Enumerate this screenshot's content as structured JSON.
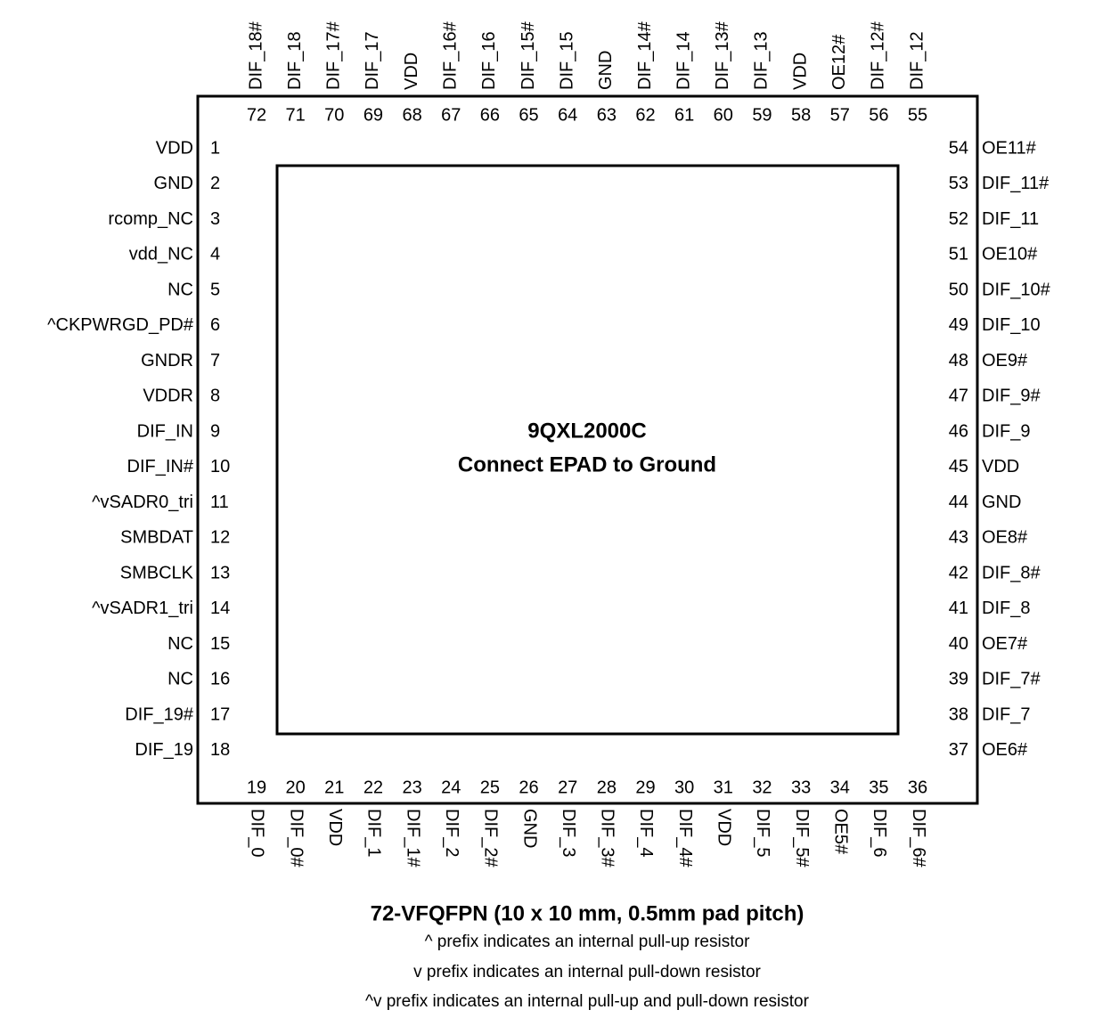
{
  "chip": {
    "name": "9QXL2000C",
    "note": "Connect EPAD to Ground"
  },
  "pins": {
    "left": [
      {
        "number": 1,
        "name": "VDD"
      },
      {
        "number": 2,
        "name": "GND"
      },
      {
        "number": 3,
        "name": "rcomp_NC"
      },
      {
        "number": 4,
        "name": "vdd_NC"
      },
      {
        "number": 5,
        "name": "NC"
      },
      {
        "number": 6,
        "name": "^CKPWRGD_PD#"
      },
      {
        "number": 7,
        "name": "GNDR"
      },
      {
        "number": 8,
        "name": "VDDR"
      },
      {
        "number": 9,
        "name": "DIF_IN"
      },
      {
        "number": 10,
        "name": "DIF_IN#"
      },
      {
        "number": 11,
        "name": "^vSADR0_tri"
      },
      {
        "number": 12,
        "name": "SMBDAT"
      },
      {
        "number": 13,
        "name": "SMBCLK"
      },
      {
        "number": 14,
        "name": "^vSADR1_tri"
      },
      {
        "number": 15,
        "name": "NC"
      },
      {
        "number": 16,
        "name": "NC"
      },
      {
        "number": 17,
        "name": "DIF_19#"
      },
      {
        "number": 18,
        "name": "DIF_19"
      }
    ],
    "top": [
      {
        "number": 72,
        "name": "DIF_18#"
      },
      {
        "number": 71,
        "name": "DIF_18"
      },
      {
        "number": 70,
        "name": "DIF_17#"
      },
      {
        "number": 69,
        "name": "DIF_17"
      },
      {
        "number": 68,
        "name": "VDD"
      },
      {
        "number": 67,
        "name": "DIF_16#"
      },
      {
        "number": 66,
        "name": "DIF_16"
      },
      {
        "number": 65,
        "name": "DIF_15#"
      },
      {
        "number": 64,
        "name": "DIF_15"
      },
      {
        "number": 63,
        "name": "GND"
      },
      {
        "number": 62,
        "name": "DIF_14#"
      },
      {
        "number": 61,
        "name": "DIF_14"
      },
      {
        "number": 60,
        "name": "DIF_13#"
      },
      {
        "number": 59,
        "name": "DIF_13"
      },
      {
        "number": 58,
        "name": "VDD"
      },
      {
        "number": 57,
        "name": "OE12#"
      },
      {
        "number": 56,
        "name": "DIF_12#"
      },
      {
        "number": 55,
        "name": "DIF_12"
      }
    ],
    "right": [
      {
        "number": 54,
        "name": "OE11#"
      },
      {
        "number": 53,
        "name": "DIF_11#"
      },
      {
        "number": 52,
        "name": "DIF_11"
      },
      {
        "number": 51,
        "name": "OE10#"
      },
      {
        "number": 50,
        "name": "DIF_10#"
      },
      {
        "number": 49,
        "name": "DIF_10"
      },
      {
        "number": 48,
        "name": "OE9#"
      },
      {
        "number": 47,
        "name": "DIF_9#"
      },
      {
        "number": 46,
        "name": "DIF_9"
      },
      {
        "number": 45,
        "name": "VDD"
      },
      {
        "number": 44,
        "name": "GND"
      },
      {
        "number": 43,
        "name": "OE8#"
      },
      {
        "number": 42,
        "name": "DIF_8#"
      },
      {
        "number": 41,
        "name": "DIF_8"
      },
      {
        "number": 40,
        "name": "OE7#"
      },
      {
        "number": 39,
        "name": "DIF_7#"
      },
      {
        "number": 38,
        "name": "DIF_7"
      },
      {
        "number": 37,
        "name": "OE6#"
      }
    ],
    "bottom": [
      {
        "number": 19,
        "name": "DIF_0"
      },
      {
        "number": 20,
        "name": "DIF_0#"
      },
      {
        "number": 21,
        "name": "VDD"
      },
      {
        "number": 22,
        "name": "DIF_1"
      },
      {
        "number": 23,
        "name": "DIF_1#"
      },
      {
        "number": 24,
        "name": "DIF_2"
      },
      {
        "number": 25,
        "name": "DIF_2#"
      },
      {
        "number": 26,
        "name": "GND"
      },
      {
        "number": 27,
        "name": "DIF_3"
      },
      {
        "number": 28,
        "name": "DIF_3#"
      },
      {
        "number": 29,
        "name": "DIF_4"
      },
      {
        "number": 30,
        "name": "DIF_4#"
      },
      {
        "number": 31,
        "name": "VDD"
      },
      {
        "number": 32,
        "name": "DIF_5"
      },
      {
        "number": 33,
        "name": "DIF_5#"
      },
      {
        "number": 34,
        "name": "OE5#"
      },
      {
        "number": 35,
        "name": "DIF_6"
      },
      {
        "number": 36,
        "name": "DIF_6#"
      }
    ]
  },
  "footer": {
    "package": "72-VFQFPN (10 x 10 mm, 0.5mm pad pitch)",
    "notes": [
      "^ prefix indicates an internal pull-up resistor",
      "v prefix indicates an internal pull-down resistor",
      "^v prefix indicates an internal pull-up and pull-down resistor"
    ]
  }
}
